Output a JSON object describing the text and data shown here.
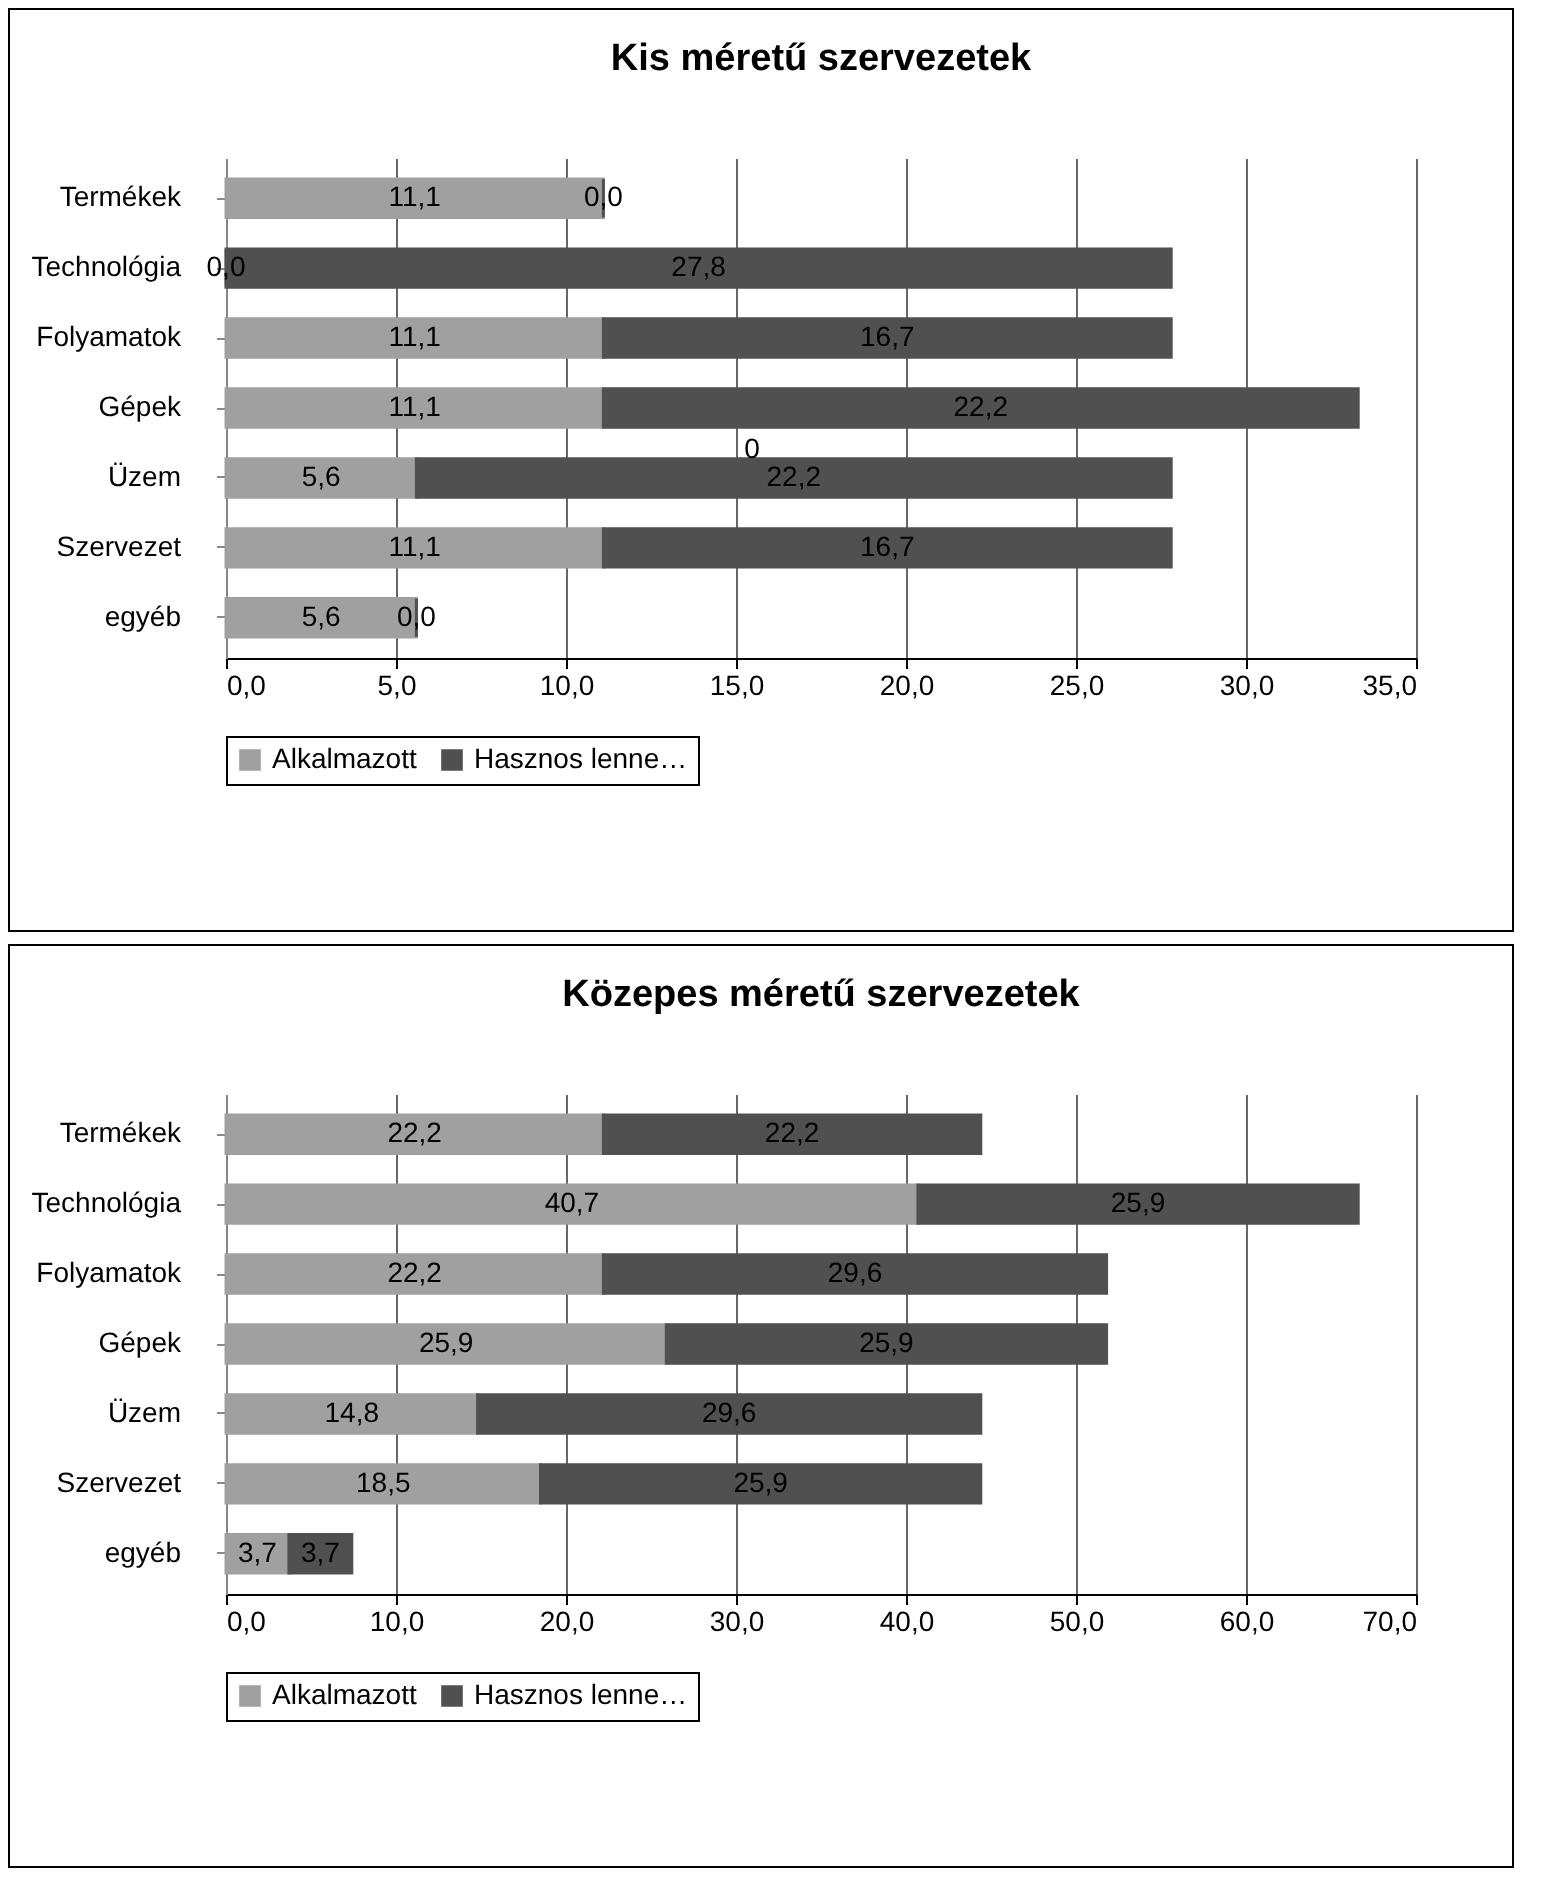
{
  "chart_data": [
    {
      "type": "bar",
      "orientation": "horizontal",
      "stacked": true,
      "title": "Kis méretű szervezetek",
      "categories": [
        "Termékek",
        "Technológia",
        "Folyamatok",
        "Gépek",
        "Üzem",
        "Szervezet",
        "egyéb"
      ],
      "series": [
        {
          "name": "Alkalmazott",
          "color": "#a0a0a0",
          "values": [
            11.1,
            0.0,
            11.1,
            11.1,
            5.6,
            11.1,
            5.6
          ],
          "value_labels": [
            "11,1",
            "0,0",
            "11,1",
            "11,1",
            "5,6",
            "11,1",
            "5,6"
          ]
        },
        {
          "name": "Hasznos lenne…",
          "color": "#505050",
          "values": [
            0.0,
            27.8,
            16.7,
            22.2,
            22.2,
            16.7,
            0.0
          ],
          "value_labels": [
            "0,0",
            "27,8",
            "16,7",
            "22,2",
            "22,2",
            "16,7",
            "0,0"
          ]
        }
      ],
      "xlim": [
        0,
        35
      ],
      "xticks": [
        {
          "value": 0,
          "label": "0,0"
        },
        {
          "value": 5,
          "label": "5,0"
        },
        {
          "value": 10,
          "label": "10,0"
        },
        {
          "value": 15,
          "label": "15,0"
        },
        {
          "value": 20,
          "label": "20,0"
        },
        {
          "value": 25,
          "label": "25,0"
        },
        {
          "value": 30,
          "label": "30,0"
        },
        {
          "value": 35,
          "label": "35,0"
        }
      ],
      "annotations": [
        {
          "text": "0",
          "x": 15,
          "y": "Üzem"
        }
      ],
      "grid": "x",
      "legend": "bottom"
    },
    {
      "type": "bar",
      "orientation": "horizontal",
      "stacked": true,
      "title": "Közepes méretű szervezetek",
      "categories": [
        "Termékek",
        "Technológia",
        "Folyamatok",
        "Gépek",
        "Üzem",
        "Szervezet",
        "egyéb"
      ],
      "series": [
        {
          "name": "Alkalmazott",
          "color": "#a0a0a0",
          "values": [
            22.2,
            40.7,
            22.2,
            25.9,
            14.8,
            18.5,
            3.7
          ],
          "value_labels": [
            "22,2",
            "40,7",
            "22,2",
            "25,9",
            "14,8",
            "18,5",
            "3,7"
          ]
        },
        {
          "name": "Hasznos lenne…",
          "color": "#505050",
          "values": [
            22.2,
            25.9,
            29.6,
            25.9,
            29.6,
            25.9,
            3.7
          ],
          "value_labels": [
            "22,2",
            "25,9",
            "29,6",
            "25,9",
            "29,6",
            "25,9",
            "3,7"
          ]
        }
      ],
      "xlim": [
        0,
        70
      ],
      "xticks": [
        {
          "value": 0,
          "label": "0,0"
        },
        {
          "value": 10,
          "label": "10,0"
        },
        {
          "value": 20,
          "label": "20,0"
        },
        {
          "value": 30,
          "label": "30,0"
        },
        {
          "value": 40,
          "label": "40,0"
        },
        {
          "value": 50,
          "label": "50,0"
        },
        {
          "value": 60,
          "label": "60,0"
        },
        {
          "value": 70,
          "label": "70,0"
        }
      ],
      "grid": "x",
      "legend": "bottom"
    }
  ]
}
